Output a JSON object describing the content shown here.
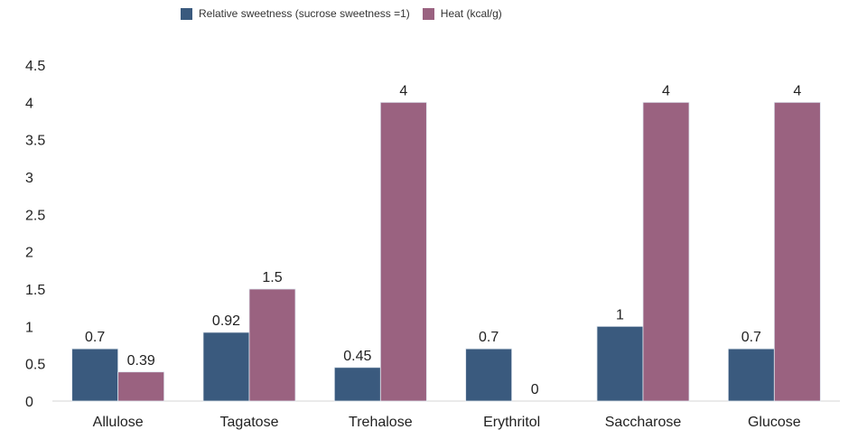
{
  "chart_data": {
    "type": "bar",
    "categories": [
      "Allulose",
      "Tagatose",
      "Trehalose",
      "Erythritol",
      "Saccharose",
      "Glucose"
    ],
    "series": [
      {
        "name": "Relative sweetness (sucrose sweetness =1)",
        "color": "#3a5a7e",
        "values": [
          0.7,
          0.92,
          0.45,
          0.7,
          1,
          0.7
        ],
        "labels": [
          "0.7",
          "0.92",
          "0.45",
          "0.7",
          "1",
          "0.7"
        ]
      },
      {
        "name": "Heat (kcal/g)",
        "color": "#9a6280",
        "values": [
          0.39,
          1.5,
          4,
          0,
          4,
          4
        ],
        "labels": [
          "0.39",
          "1.5",
          "4",
          "0",
          "4",
          "4"
        ]
      }
    ],
    "ylim": [
      0,
      4.5
    ],
    "yticks": [
      "0",
      "0.5",
      "1",
      "1.5",
      "2",
      "2.5",
      "3",
      "3.5",
      "4",
      "4.5"
    ],
    "legend_position": "top-left",
    "grid": false
  }
}
